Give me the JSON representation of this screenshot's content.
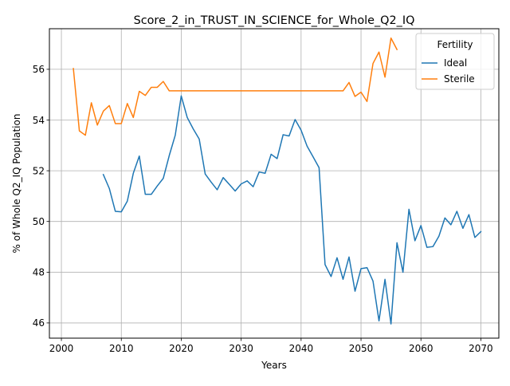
{
  "chart_data": {
    "type": "line",
    "title": "Score_2_in_TRUST_IN_SCIENCE_for_Whole_Q2_IQ",
    "xlabel": "Years",
    "ylabel": "% of Whole Q2_IQ Population",
    "xlim": [
      1998,
      2073
    ],
    "ylim": [
      45.4,
      57.6
    ],
    "xticks": [
      2000,
      2010,
      2020,
      2030,
      2040,
      2050,
      2060,
      2070
    ],
    "yticks": [
      46,
      48,
      50,
      52,
      54,
      56
    ],
    "grid": true,
    "legend": {
      "title": "Fertility",
      "position": "top-right"
    },
    "series": [
      {
        "name": "Ideal",
        "color": "#1f77b4",
        "x": [
          2007,
          2008,
          2009,
          2010,
          2011,
          2012,
          2013,
          2014,
          2015,
          2016,
          2017,
          2018,
          2019,
          2020,
          2021,
          2022,
          2023,
          2024,
          2025,
          2026,
          2027,
          2028,
          2029,
          2030,
          2031,
          2032,
          2033,
          2034,
          2035,
          2036,
          2037,
          2038,
          2039,
          2040,
          2041,
          2042,
          2043,
          2044,
          2045,
          2046,
          2047,
          2048,
          2049,
          2050,
          2051,
          2052,
          2053,
          2054,
          2055,
          2056,
          2057,
          2058,
          2059,
          2060,
          2061,
          2062,
          2063,
          2064,
          2065,
          2066,
          2067,
          2068,
          2069,
          2070
        ],
        "values": [
          51.85,
          51.3,
          50.4,
          50.38,
          50.8,
          51.9,
          52.58,
          51.07,
          51.07,
          51.4,
          51.7,
          52.6,
          53.4,
          54.95,
          54.1,
          53.65,
          53.25,
          51.87,
          51.55,
          51.25,
          51.73,
          51.47,
          51.2,
          51.48,
          51.6,
          51.37,
          51.95,
          51.9,
          52.65,
          52.48,
          53.42,
          53.37,
          54.02,
          53.6,
          52.97,
          52.55,
          52.12,
          48.3,
          47.83,
          48.57,
          47.72,
          48.6,
          47.25,
          48.14,
          48.18,
          47.65,
          46.08,
          47.72,
          45.96,
          49.16,
          48.0,
          50.48,
          49.24,
          49.84,
          48.98,
          49.01,
          49.42,
          50.14,
          49.87,
          50.4,
          49.73,
          50.27,
          49.37,
          49.6
        ]
      },
      {
        "name": "Sterile",
        "color": "#ff7f0e",
        "x": [
          2002,
          2003,
          2004,
          2005,
          2006,
          2007,
          2008,
          2009,
          2010,
          2011,
          2012,
          2013,
          2014,
          2015,
          2016,
          2017,
          2018,
          2019,
          2020,
          2021,
          2022,
          2023,
          2024,
          2025,
          2026,
          2027,
          2028,
          2029,
          2030,
          2031,
          2032,
          2033,
          2034,
          2035,
          2036,
          2037,
          2038,
          2039,
          2040,
          2041,
          2042,
          2043,
          2044,
          2045,
          2046,
          2047,
          2048,
          2049,
          2050,
          2051,
          2052,
          2053,
          2054,
          2055,
          2056
        ],
        "values": [
          56.03,
          53.57,
          53.4,
          54.68,
          53.8,
          54.35,
          54.57,
          53.86,
          53.86,
          54.65,
          54.1,
          55.13,
          54.97,
          55.29,
          55.29,
          55.52,
          55.15,
          55.15,
          55.15,
          55.15,
          55.15,
          55.15,
          55.15,
          55.15,
          55.15,
          55.15,
          55.15,
          55.15,
          55.15,
          55.15,
          55.15,
          55.15,
          55.15,
          55.15,
          55.15,
          55.15,
          55.15,
          55.15,
          55.15,
          55.15,
          55.15,
          55.15,
          55.15,
          55.15,
          55.15,
          55.15,
          55.48,
          54.93,
          55.1,
          54.73,
          56.23,
          56.68,
          55.69,
          57.23,
          56.78
        ]
      }
    ]
  }
}
